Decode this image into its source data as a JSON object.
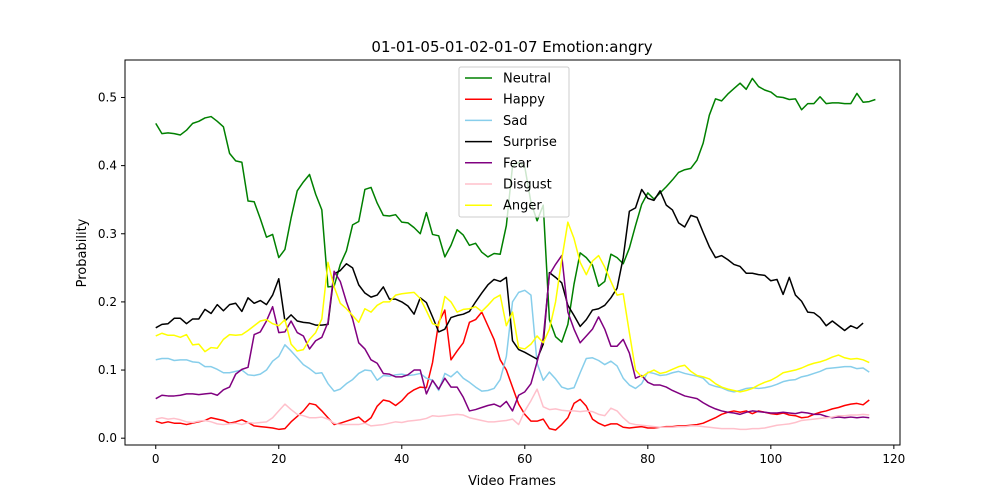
{
  "chart_data": {
    "type": "line",
    "title": "01-01-05-01-02-01-07 Emotion:angry",
    "xlabel": "Video Frames",
    "ylabel": "Probability",
    "xlim": [
      -5,
      121
    ],
    "ylim": [
      -0.01,
      0.555
    ],
    "xticks": [
      0,
      20,
      40,
      60,
      80,
      100,
      120
    ],
    "yticks": [
      0.0,
      0.1,
      0.2,
      0.3,
      0.4,
      0.5
    ],
    "xtick_labels": [
      "0",
      "20",
      "40",
      "60",
      "80",
      "100",
      "120"
    ],
    "ytick_labels": [
      "0.0",
      "0.1",
      "0.2",
      "0.3",
      "0.4",
      "0.5"
    ],
    "grid": false,
    "legend_position": "top-center",
    "series": [
      {
        "name": "Neutral",
        "color": "#008000",
        "values": [
          0.462,
          0.447,
          0.448,
          0.447,
          0.445,
          0.452,
          0.462,
          0.465,
          0.47,
          0.472,
          0.465,
          0.457,
          0.418,
          0.407,
          0.405,
          0.348,
          0.347,
          0.322,
          0.295,
          0.299,
          0.265,
          0.277,
          0.323,
          0.363,
          0.376,
          0.387,
          0.358,
          0.335,
          0.222,
          0.223,
          0.255,
          0.275,
          0.313,
          0.318,
          0.365,
          0.368,
          0.345,
          0.327,
          0.326,
          0.328,
          0.317,
          0.316,
          0.309,
          0.3,
          0.331,
          0.299,
          0.297,
          0.266,
          0.283,
          0.306,
          0.298,
          0.283,
          0.286,
          0.273,
          0.266,
          0.271,
          0.27,
          0.312,
          0.399,
          0.405,
          0.398,
          0.346,
          0.319,
          0.342,
          0.174,
          0.149,
          0.141,
          0.167,
          0.226,
          0.272,
          0.265,
          0.254,
          0.223,
          0.23,
          0.27,
          0.265,
          0.256,
          0.279,
          0.312,
          0.343,
          0.36,
          0.351,
          0.36,
          0.369,
          0.379,
          0.39,
          0.394,
          0.396,
          0.408,
          0.433,
          0.474,
          0.498,
          0.495,
          0.505,
          0.513,
          0.521,
          0.512,
          0.528,
          0.516,
          0.511,
          0.508,
          0.501,
          0.5,
          0.497,
          0.498,
          0.482,
          0.491,
          0.491,
          0.501,
          0.491,
          0.492,
          0.492,
          0.491,
          0.491,
          0.506,
          0.493,
          0.494,
          0.497
        ]
      },
      {
        "name": "Happy",
        "color": "#ff0000",
        "values": [
          0.025,
          0.022,
          0.024,
          0.022,
          0.022,
          0.02,
          0.022,
          0.024,
          0.026,
          0.03,
          0.028,
          0.026,
          0.022,
          0.024,
          0.027,
          0.023,
          0.018,
          0.017,
          0.016,
          0.015,
          0.013,
          0.014,
          0.024,
          0.032,
          0.04,
          0.051,
          0.049,
          0.04,
          0.03,
          0.02,
          0.022,
          0.025,
          0.028,
          0.031,
          0.023,
          0.03,
          0.047,
          0.056,
          0.054,
          0.048,
          0.055,
          0.065,
          0.071,
          0.075,
          0.074,
          0.111,
          0.17,
          0.188,
          0.115,
          0.128,
          0.14,
          0.17,
          0.174,
          0.185,
          0.165,
          0.145,
          0.115,
          0.1,
          0.075,
          0.05,
          0.035,
          0.025,
          0.025,
          0.028,
          0.014,
          0.012,
          0.02,
          0.03,
          0.051,
          0.057,
          0.047,
          0.028,
          0.022,
          0.018,
          0.021,
          0.021,
          0.016,
          0.015,
          0.016,
          0.017,
          0.015,
          0.015,
          0.016,
          0.017,
          0.017,
          0.018,
          0.018,
          0.019,
          0.02,
          0.022,
          0.026,
          0.03,
          0.035,
          0.038,
          0.04,
          0.038,
          0.04,
          0.036,
          0.04,
          0.038,
          0.036,
          0.035,
          0.037,
          0.034,
          0.033,
          0.03,
          0.031,
          0.035,
          0.038,
          0.04,
          0.043,
          0.045,
          0.048,
          0.05,
          0.051,
          0.049,
          0.056
        ]
      },
      {
        "name": "Sad",
        "color": "#87ceeb",
        "values": [
          0.115,
          0.117,
          0.117,
          0.114,
          0.115,
          0.115,
          0.112,
          0.111,
          0.105,
          0.105,
          0.101,
          0.096,
          0.096,
          0.098,
          0.1,
          0.093,
          0.092,
          0.094,
          0.1,
          0.113,
          0.12,
          0.137,
          0.128,
          0.118,
          0.108,
          0.102,
          0.095,
          0.096,
          0.08,
          0.069,
          0.072,
          0.08,
          0.086,
          0.095,
          0.1,
          0.099,
          0.085,
          0.092,
          0.091,
          0.093,
          0.094,
          0.092,
          0.093,
          0.095,
          0.088,
          0.085,
          0.07,
          0.095,
          0.09,
          0.098,
          0.088,
          0.082,
          0.075,
          0.069,
          0.07,
          0.073,
          0.086,
          0.12,
          0.2,
          0.214,
          0.217,
          0.21,
          0.11,
          0.085,
          0.097,
          0.087,
          0.075,
          0.072,
          0.074,
          0.096,
          0.117,
          0.118,
          0.114,
          0.108,
          0.113,
          0.106,
          0.088,
          0.078,
          0.073,
          0.08,
          0.097,
          0.095,
          0.092,
          0.093,
          0.096,
          0.098,
          0.095,
          0.093,
          0.091,
          0.088,
          0.079,
          0.076,
          0.074,
          0.07,
          0.068,
          0.07,
          0.073,
          0.074,
          0.073,
          0.074,
          0.076,
          0.079,
          0.083,
          0.085,
          0.086,
          0.09,
          0.092,
          0.095,
          0.098,
          0.102,
          0.103,
          0.104,
          0.105,
          0.105,
          0.102,
          0.103,
          0.097
        ]
      },
      {
        "name": "Surprise",
        "color": "#000000",
        "values": [
          0.162,
          0.167,
          0.168,
          0.176,
          0.176,
          0.168,
          0.175,
          0.175,
          0.189,
          0.183,
          0.196,
          0.187,
          0.196,
          0.198,
          0.186,
          0.206,
          0.198,
          0.202,
          0.196,
          0.21,
          0.234,
          0.172,
          0.181,
          0.172,
          0.17,
          0.169,
          0.166,
          0.166,
          0.167,
          0.241,
          0.246,
          0.256,
          0.25,
          0.225,
          0.213,
          0.207,
          0.21,
          0.222,
          0.204,
          0.204,
          0.2,
          0.194,
          0.182,
          0.206,
          0.199,
          0.178,
          0.156,
          0.16,
          0.177,
          0.18,
          0.182,
          0.186,
          0.2,
          0.213,
          0.225,
          0.233,
          0.23,
          0.236,
          0.143,
          0.13,
          0.126,
          0.121,
          0.116,
          0.138,
          0.243,
          0.236,
          0.228,
          0.195,
          0.18,
          0.164,
          0.174,
          0.188,
          0.19,
          0.195,
          0.206,
          0.22,
          0.265,
          0.333,
          0.338,
          0.365,
          0.352,
          0.349,
          0.363,
          0.342,
          0.335,
          0.316,
          0.31,
          0.327,
          0.324,
          0.302,
          0.281,
          0.265,
          0.268,
          0.262,
          0.255,
          0.252,
          0.242,
          0.242,
          0.24,
          0.239,
          0.231,
          0.233,
          0.211,
          0.236,
          0.21,
          0.201,
          0.185,
          0.184,
          0.177,
          0.165,
          0.172,
          0.165,
          0.158,
          0.165,
          0.161,
          0.169
        ]
      },
      {
        "name": "Fear",
        "color": "#800080",
        "values": [
          0.058,
          0.063,
          0.062,
          0.062,
          0.063,
          0.065,
          0.065,
          0.064,
          0.065,
          0.066,
          0.063,
          0.071,
          0.075,
          0.094,
          0.101,
          0.104,
          0.152,
          0.156,
          0.172,
          0.193,
          0.155,
          0.156,
          0.172,
          0.155,
          0.15,
          0.131,
          0.143,
          0.148,
          0.17,
          0.245,
          0.23,
          0.2,
          0.175,
          0.14,
          0.131,
          0.115,
          0.11,
          0.095,
          0.094,
          0.09,
          0.09,
          0.093,
          0.1,
          0.1,
          0.065,
          0.085,
          0.072,
          0.088,
          0.075,
          0.075,
          0.06,
          0.04,
          0.042,
          0.045,
          0.048,
          0.05,
          0.046,
          0.054,
          0.04,
          0.063,
          0.068,
          0.08,
          0.112,
          0.147,
          0.24,
          0.255,
          0.268,
          0.185,
          0.16,
          0.14,
          0.15,
          0.16,
          0.178,
          0.16,
          0.135,
          0.135,
          0.145,
          0.125,
          0.088,
          0.092,
          0.082,
          0.078,
          0.078,
          0.075,
          0.07,
          0.066,
          0.062,
          0.06,
          0.058,
          0.052,
          0.047,
          0.043,
          0.04,
          0.038,
          0.037,
          0.035,
          0.038,
          0.04,
          0.039,
          0.038,
          0.037,
          0.037,
          0.038,
          0.037,
          0.036,
          0.038,
          0.037,
          0.035,
          0.035,
          0.032,
          0.03,
          0.031,
          0.03,
          0.031,
          0.03,
          0.031,
          0.03
        ]
      },
      {
        "name": "Disgust",
        "color": "#ffc0cb",
        "values": [
          0.028,
          0.03,
          0.028,
          0.029,
          0.027,
          0.024,
          0.023,
          0.025,
          0.026,
          0.024,
          0.021,
          0.02,
          0.021,
          0.022,
          0.02,
          0.023,
          0.022,
          0.023,
          0.024,
          0.03,
          0.04,
          0.05,
          0.042,
          0.035,
          0.033,
          0.03,
          0.03,
          0.031,
          0.028,
          0.022,
          0.02,
          0.02,
          0.02,
          0.02,
          0.022,
          0.018,
          0.019,
          0.02,
          0.022,
          0.024,
          0.023,
          0.025,
          0.026,
          0.027,
          0.029,
          0.033,
          0.032,
          0.033,
          0.034,
          0.035,
          0.034,
          0.03,
          0.028,
          0.026,
          0.024,
          0.024,
          0.025,
          0.026,
          0.028,
          0.02,
          0.04,
          0.055,
          0.072,
          0.046,
          0.042,
          0.043,
          0.041,
          0.04,
          0.04,
          0.039,
          0.04,
          0.039,
          0.035,
          0.033,
          0.044,
          0.04,
          0.03,
          0.022,
          0.02,
          0.019,
          0.018,
          0.017,
          0.016,
          0.016,
          0.016,
          0.017,
          0.017,
          0.018,
          0.018,
          0.017,
          0.016,
          0.015,
          0.014,
          0.014,
          0.014,
          0.013,
          0.013,
          0.014,
          0.014,
          0.015,
          0.017,
          0.019,
          0.02,
          0.021,
          0.023,
          0.026,
          0.027,
          0.028,
          0.029,
          0.03,
          0.031,
          0.033,
          0.033,
          0.034,
          0.034,
          0.035,
          0.034
        ]
      },
      {
        "name": "Anger",
        "color": "#ffff00",
        "values": [
          0.15,
          0.154,
          0.151,
          0.151,
          0.148,
          0.152,
          0.137,
          0.138,
          0.127,
          0.133,
          0.132,
          0.145,
          0.152,
          0.151,
          0.152,
          0.158,
          0.165,
          0.172,
          0.174,
          0.168,
          0.165,
          0.174,
          0.138,
          0.128,
          0.13,
          0.145,
          0.155,
          0.175,
          0.258,
          0.222,
          0.198,
          0.19,
          0.18,
          0.17,
          0.19,
          0.185,
          0.195,
          0.2,
          0.2,
          0.21,
          0.212,
          0.213,
          0.214,
          0.205,
          0.187,
          0.168,
          0.165,
          0.208,
          0.2,
          0.185,
          0.189,
          0.19,
          0.193,
          0.186,
          0.195,
          0.205,
          0.21,
          0.165,
          0.185,
          0.133,
          0.131,
          0.138,
          0.15,
          0.14,
          0.16,
          0.2,
          0.262,
          0.317,
          0.293,
          0.258,
          0.24,
          0.26,
          0.268,
          0.251,
          0.23,
          0.21,
          0.212,
          0.155,
          0.1,
          0.09,
          0.096,
          0.1,
          0.095,
          0.097,
          0.101,
          0.105,
          0.107,
          0.098,
          0.092,
          0.09,
          0.087,
          0.08,
          0.075,
          0.072,
          0.07,
          0.068,
          0.07,
          0.073,
          0.078,
          0.082,
          0.085,
          0.09,
          0.096,
          0.098,
          0.1,
          0.103,
          0.107,
          0.11,
          0.112,
          0.115,
          0.119,
          0.122,
          0.118,
          0.116,
          0.117,
          0.115,
          0.111
        ]
      }
    ]
  }
}
